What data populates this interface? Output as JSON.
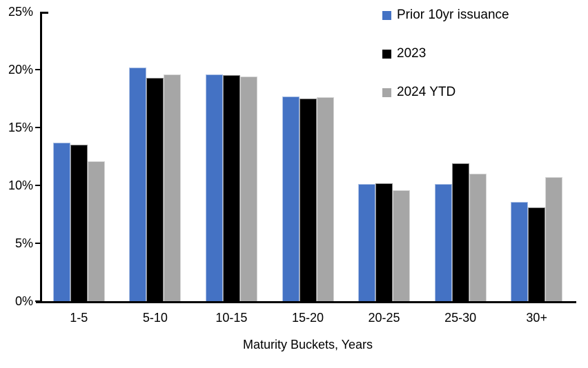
{
  "chart_data": {
    "type": "bar",
    "categories": [
      "1-5",
      "5-10",
      "10-15",
      "15-20",
      "20-25",
      "25-30",
      "30+"
    ],
    "series": [
      {
        "name": "Prior 10yr issuance",
        "color": "#4472C4",
        "values": [
          13.7,
          20.2,
          19.6,
          17.7,
          10.1,
          10.1,
          8.6
        ]
      },
      {
        "name": "2023",
        "color": "#000000",
        "values": [
          13.5,
          19.3,
          19.5,
          17.5,
          10.2,
          11.9,
          8.1
        ]
      },
      {
        "name": "2024 YTD",
        "color": "#A6A6A6",
        "values": [
          12.1,
          19.6,
          19.4,
          17.6,
          9.6,
          11.0,
          10.7
        ]
      }
    ],
    "title": "",
    "xlabel": "Maturity Buckets, Years",
    "ylabel": "",
    "ylim": [
      0,
      25
    ],
    "yticks": [
      0,
      5,
      10,
      15,
      20,
      25
    ],
    "ytick_labels": [
      "0%",
      "5%",
      "10%",
      "15%",
      "20%",
      "25%"
    ],
    "grid": false,
    "legend_position": "top-right",
    "axis_color": "#000000",
    "background_color": "#FFFFFF"
  }
}
